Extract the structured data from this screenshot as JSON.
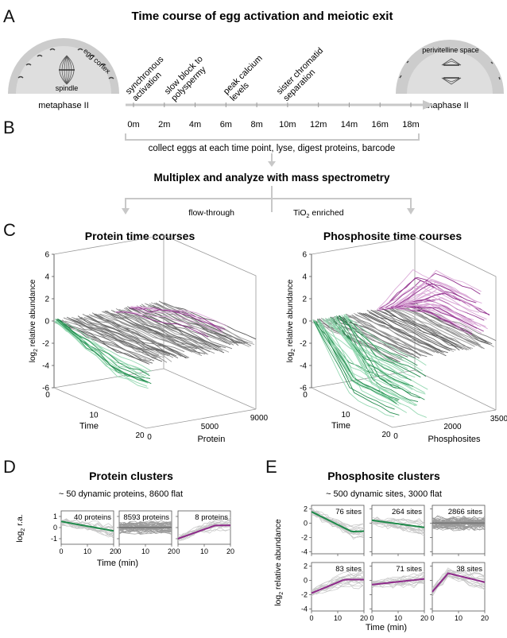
{
  "panel_a": {
    "letter": "A",
    "title": "Time course of egg activation and meiotic exit",
    "left_egg": {
      "label": "metaphase II",
      "cortex_label": "egg cortex",
      "spindle_label": "spindle"
    },
    "right_egg": {
      "label": "anaphase II",
      "space_label": "perivitelline space"
    },
    "events": [
      "synchronous activation",
      "slow block to polyspermy",
      "peak calcium levels",
      "sister chromatid separation"
    ],
    "event_lines": [
      [
        "synchronous",
        "activation"
      ],
      [
        "slow block to",
        "polyspermy"
      ],
      [
        "peak calcium",
        "levels"
      ],
      [
        "sister chromatid",
        "separation"
      ]
    ]
  },
  "panel_b": {
    "letter": "B",
    "timepoints": [
      "0m",
      "2m",
      "4m",
      "6m",
      "8m",
      "10m",
      "12m",
      "14m",
      "16m",
      "18m"
    ],
    "collect_text": "collect eggs at each time point, lyse, digest proteins, barcode",
    "multiplex_text": "Multiplex and analyze with mass spectrometry",
    "flowthrough_label": "flow-through",
    "tio2_label_main": "TiO",
    "tio2_label_sub": "2",
    "tio2_label_rest": " enriched"
  },
  "panel_c": {
    "letter": "C",
    "protein": {
      "title": "Protein time courses",
      "ylabel_log": "log",
      "ylabel_sub": "2",
      "ylabel_rest": " relative abundance",
      "z_ticks": [
        "6",
        "4",
        "2",
        "0",
        "-2",
        "-4",
        "-6"
      ],
      "time_ticks": [
        "0",
        "10",
        "20"
      ],
      "time_label": "Time",
      "index_ticks": [
        "0",
        "5000",
        "9000"
      ],
      "index_label": "Protein"
    },
    "phospho": {
      "title": "Phosphosite time courses",
      "ylabel_log": "log",
      "ylabel_sub": "2",
      "ylabel_rest": " relative abundance",
      "z_ticks": [
        "6",
        "4",
        "2",
        "0",
        "-2",
        "-4",
        "-6"
      ],
      "time_ticks": [
        "0",
        "10",
        "20"
      ],
      "time_label": "Time",
      "index_ticks": [
        "0",
        "2000",
        "3500"
      ],
      "index_label": "Phosphosites"
    }
  },
  "panel_d": {
    "letter": "D",
    "title": "Protein clusters",
    "subtitle": "~ 50 dynamic proteins, 8600 flat",
    "ylabel_log": "log",
    "ylabel_sub": "2",
    "ylabel_rest": " r.a.",
    "xlabel": "Time (min)",
    "y_ticks": [
      "1",
      "0",
      "-1"
    ],
    "x_ticks": [
      "0",
      "10",
      "20"
    ],
    "clusters": [
      {
        "label": "40 proteins",
        "trend": "down",
        "color": "#1e8a4a"
      },
      {
        "label": "8593 proteins",
        "trend": "flat",
        "color": "#7a7a7a"
      },
      {
        "label": "8 proteins",
        "trend": "up",
        "color": "#8e2a8a"
      }
    ]
  },
  "panel_e": {
    "letter": "E",
    "title": "Phosphosite clusters",
    "subtitle": "~ 500 dynamic sites, 3000 flat",
    "ylabel_log": "log",
    "ylabel_sub": "2",
    "ylabel_rest": " relative abundance",
    "xlabel": "Time (min)",
    "y_ticks": [
      "2",
      "0",
      "-2",
      "-4"
    ],
    "x_ticks": [
      "0",
      "10",
      "20"
    ],
    "clusters": [
      {
        "label": "76 sites",
        "trend": "down-strong",
        "color": "#1e8a4a"
      },
      {
        "label": "264 sites",
        "trend": "down-mild",
        "color": "#1e8a4a"
      },
      {
        "label": "2866 sites",
        "trend": "flat",
        "color": "#7a7a7a"
      },
      {
        "label": "83 sites",
        "trend": "up-strong",
        "color": "#8e2a8a"
      },
      {
        "label": "71 sites",
        "trend": "up-mild",
        "color": "#8e2a8a"
      },
      {
        "label": "38 sites",
        "trend": "peak",
        "color": "#8e2a8a"
      }
    ]
  },
  "colors": {
    "green": "#1e8a4a",
    "light_green": "#8fd6ae",
    "purple": "#8e2a8a",
    "light_purple": "#d9a6d6",
    "gray": "#666666",
    "light_gray": "#c9c9c9",
    "arrow": "#c8c8c8"
  }
}
